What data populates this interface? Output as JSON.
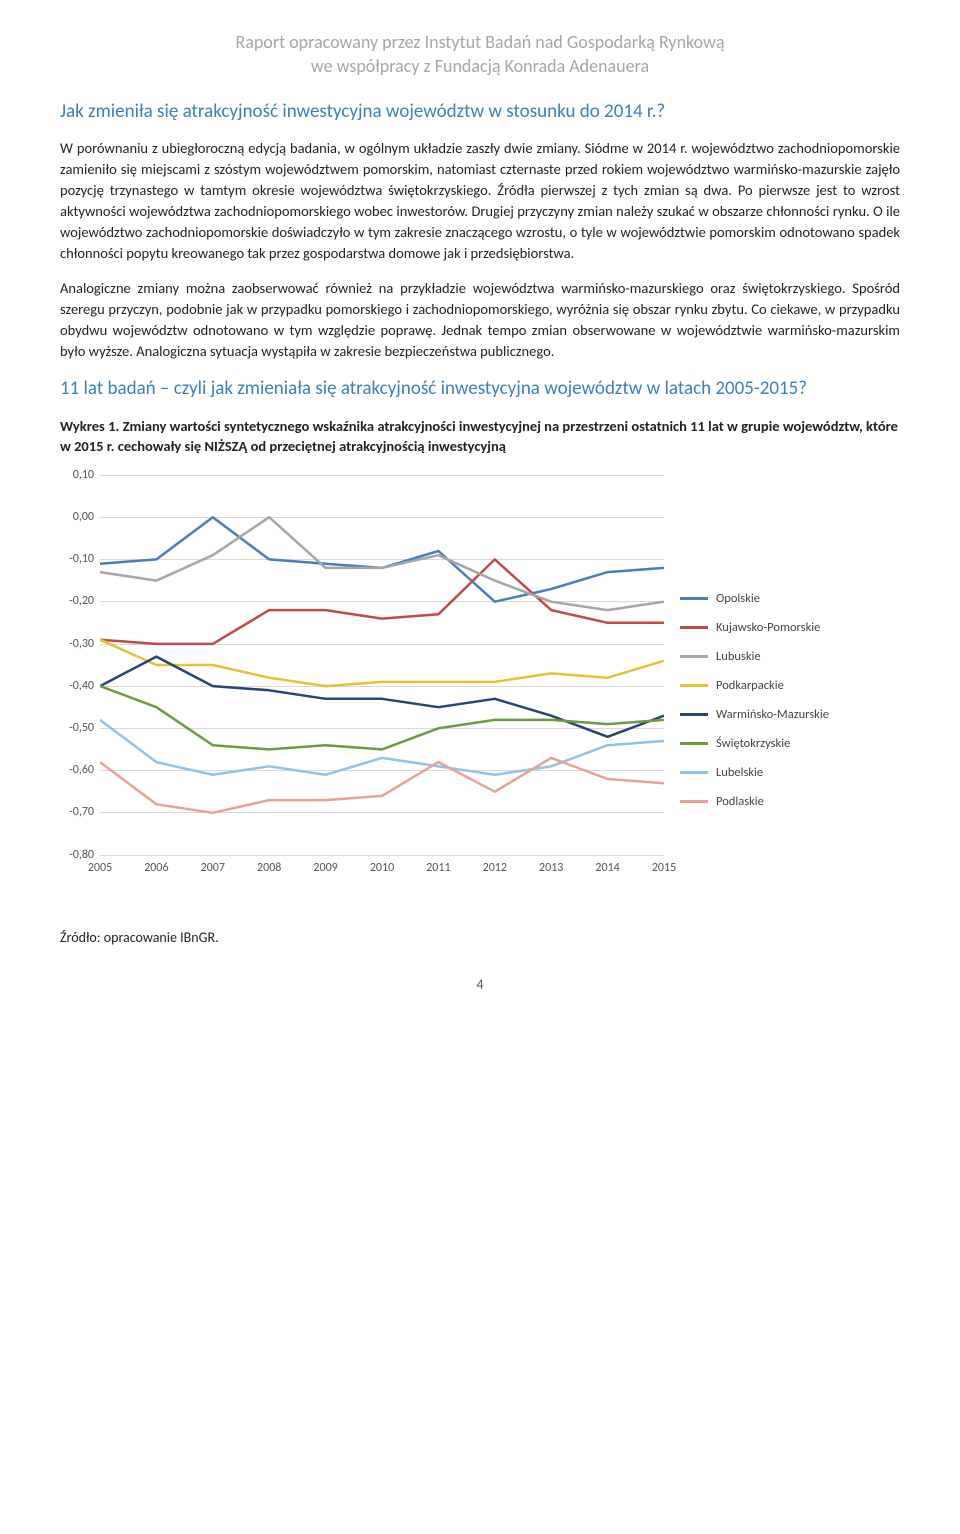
{
  "header": {
    "line1": "Raport opracowany przez Instytut Badań nad Gospodarką Rynkową",
    "line2": "we współpracy z Fundacją Konrada Adenauera"
  },
  "section1": {
    "heading": "Jak zmieniła się atrakcyjność inwestycyjna województw w stosunku do 2014 r.?",
    "para1": "W porównaniu z ubiegłoroczną edycją badania, w ogólnym układzie zaszły dwie zmiany. Siódme w 2014 r. województwo zachodniopomorskie zamieniło się miejscami z szóstym województwem pomorskim, natomiast czternaste przed rokiem województwo warmińsko-mazurskie zajęło pozycję trzynastego w tamtym okresie województwa świętokrzyskiego. Źródła pierwszej z tych zmian są dwa. Po pierwsze jest to wzrost aktywności województwa zachodniopomorskiego wobec inwestorów. Drugiej przyczyny zmian należy szukać w obszarze chłonności rynku. O ile województwo zachodniopomorskie doświadczyło w tym zakresie znaczącego wzrostu, o tyle w województwie pomorskim odnotowano spadek chłonności popytu kreowanego tak przez gospodarstwa domowe jak i przedsiębiorstwa.",
    "para2": "Analogiczne zmiany można zaobserwować również na przykładzie województwa warmińsko-mazurskiego oraz świętokrzyskiego. Spośród szeregu przyczyn, podobnie jak w przypadku pomorskiego i zachodniopomorskiego, wyróżnia się obszar rynku zbytu. Co ciekawe, w przypadku obydwu województw odnotowano w tym względzie poprawę. Jednak tempo zmian obserwowane w województwie warmińsko-mazurskim było wyższe. Analogiczna sytuacja wystąpiła w zakresie bezpieczeństwa publicznego."
  },
  "section2": {
    "heading": "11 lat badań – czyli jak zmieniała się atrakcyjność inwestycyjna województw w latach 2005-2015?"
  },
  "figure": {
    "caption": "Wykres 1. Zmiany wartości syntetycznego wskaźnika atrakcyjności inwestycyjnej na przestrzeni ostatnich 11 lat w grupie województw, które w 2015 r. cechowały się NIŻSZĄ od przeciętnej atrakcyjnością inwestycyjną"
  },
  "chart": {
    "type": "line",
    "background_color": "#ffffff",
    "grid_color": "#d9d9d9",
    "line_width": 2.5,
    "ylim": [
      -0.8,
      0.1
    ],
    "ytick_step": 0.1,
    "yticks": [
      "0,10",
      "0,00",
      "-0,10",
      "-0,20",
      "-0,30",
      "-0,40",
      "-0,50",
      "-0,60",
      "-0,70",
      "-0,80"
    ],
    "x_categories": [
      "2005",
      "2006",
      "2007",
      "2008",
      "2009",
      "2010",
      "2011",
      "2012",
      "2013",
      "2014",
      "2015"
    ],
    "label_fontsize": 12,
    "legend_fontsize": 12.5,
    "series": [
      {
        "name": "Opolskie",
        "color": "#4a7ebb",
        "values": [
          -0.11,
          -0.1,
          -0.0,
          -0.1,
          -0.11,
          -0.12,
          -0.08,
          -0.2,
          -0.17,
          -0.13,
          -0.12
        ]
      },
      {
        "name": "Kujawsko-Pomorskie",
        "color": "#be4b48",
        "values": [
          -0.29,
          -0.3,
          -0.3,
          -0.22,
          -0.22,
          -0.24,
          -0.23,
          -0.1,
          -0.22,
          -0.25,
          -0.25
        ]
      },
      {
        "name": "Lubuskie",
        "color": "#a6a6a6",
        "values": [
          -0.13,
          -0.15,
          -0.09,
          -0.0,
          -0.12,
          -0.12,
          -0.09,
          -0.15,
          -0.2,
          -0.22,
          -0.2
        ]
      },
      {
        "name": "Podkarpackie",
        "color": "#e5c235",
        "values": [
          -0.29,
          -0.35,
          -0.35,
          -0.38,
          -0.4,
          -0.39,
          -0.39,
          -0.39,
          -0.37,
          -0.38,
          -0.34
        ]
      },
      {
        "name": "Warmińsko-Mazurskie",
        "color": "#264478",
        "values": [
          -0.4,
          -0.33,
          -0.4,
          -0.41,
          -0.43,
          -0.43,
          -0.45,
          -0.43,
          -0.47,
          -0.52,
          -0.47
        ]
      },
      {
        "name": "Świętokrzyskie",
        "color": "#6f9a3e",
        "values": [
          -0.4,
          -0.45,
          -0.54,
          -0.55,
          -0.54,
          -0.55,
          -0.5,
          -0.48,
          -0.48,
          -0.49,
          -0.48
        ]
      },
      {
        "name": "Lubelskie",
        "color": "#8fc3e8",
        "values": [
          -0.48,
          -0.58,
          -0.61,
          -0.59,
          -0.61,
          -0.57,
          -0.59,
          -0.61,
          -0.59,
          -0.54,
          -0.53
        ]
      },
      {
        "name": "Podlaskie",
        "color": "#e8a196",
        "values": [
          -0.58,
          -0.68,
          -0.7,
          -0.67,
          -0.67,
          -0.66,
          -0.58,
          -0.65,
          -0.57,
          -0.62,
          -0.63
        ]
      }
    ]
  },
  "source": {
    "text": "Źródło: opracowanie IBnGR."
  },
  "page": {
    "number": "4"
  }
}
